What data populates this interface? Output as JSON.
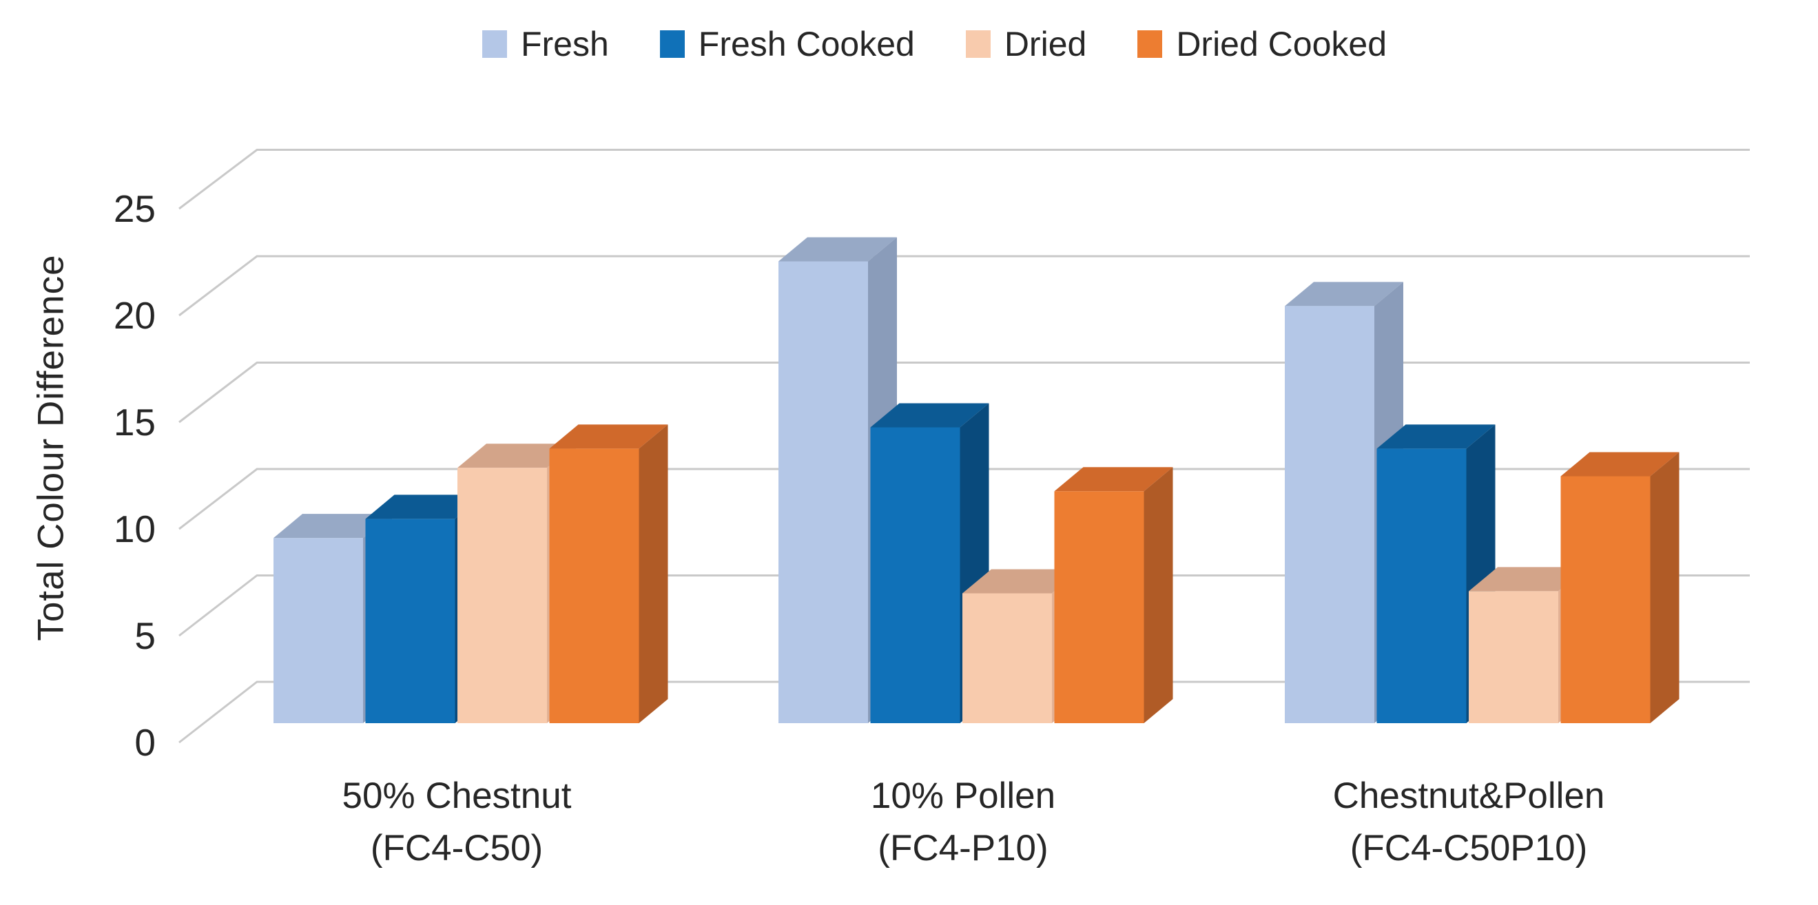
{
  "figure": {
    "background": "#FFFFFF",
    "text_color": "#262626"
  },
  "legend": {
    "position": "top",
    "items": [
      "Fresh",
      "Fresh Cooked",
      "Dried",
      "Dried Cooked"
    ]
  },
  "y_axis": {
    "title": "Total Colour Difference",
    "ticks": [
      "0",
      "5",
      "10",
      "15",
      "20",
      "25"
    ]
  },
  "x_axis": {
    "categories": [
      {
        "line1": "50% Chestnut",
        "line2": "(FC4-C50)"
      },
      {
        "line1": "10% Pollen",
        "line2": "(FC4-P10)"
      },
      {
        "line1": "Chestnut&Pollen",
        "line2": "(FC4-C50P10)"
      }
    ]
  },
  "chart_data": {
    "type": "bar",
    "projection": "3d-clustered-column",
    "title": "",
    "categories": [
      "50% Chestnut (FC4-C50)",
      "10% Pollen (FC4-P10)",
      "Chestnut&Pollen (FC4-C50P10)"
    ],
    "series": [
      {
        "name": "Fresh",
        "color": "#B4C7E7",
        "color_top": "#97A9C6",
        "color_side": "#8A9CBA",
        "values": [
          8.7,
          21.7,
          19.6
        ]
      },
      {
        "name": "Fresh Cooked",
        "color": "#1071B8",
        "color_top": "#0C5A94",
        "color_side": "#094A7C",
        "values": [
          9.6,
          13.9,
          12.9
        ]
      },
      {
        "name": "Dried",
        "color": "#F8CBAD",
        "color_top": "#D3A489",
        "color_side": "#E2B195",
        "values": [
          12.0,
          6.1,
          6.2
        ]
      },
      {
        "name": "Dried Cooked",
        "color": "#ED7D31",
        "color_top": "#D0692B",
        "color_side": "#B05B26",
        "values": [
          12.9,
          10.9,
          11.6
        ]
      }
    ],
    "ylabel": "Total Colour Difference",
    "ylim": [
      0,
      25
    ],
    "ytick_step": 5,
    "grid": true,
    "gridline_color": "#C9C9C9",
    "legend_position": "top"
  }
}
